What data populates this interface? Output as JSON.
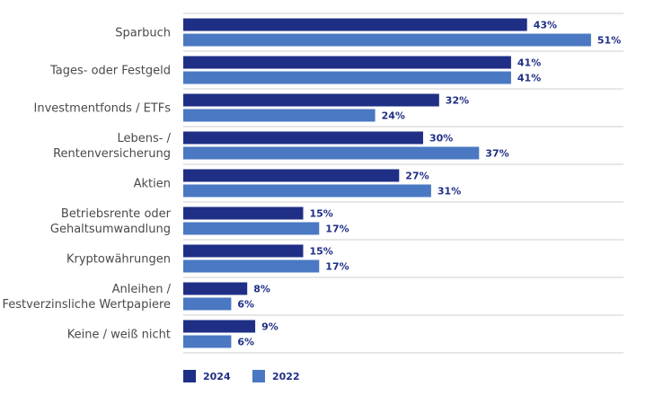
{
  "chart_data": {
    "type": "bar",
    "orientation": "horizontal",
    "categories": [
      [
        "Sparbuch"
      ],
      [
        "Tages- oder Festgeld"
      ],
      [
        "Investmentfonds / ETFs"
      ],
      [
        "Lebens- /",
        "Rentenversicherung"
      ],
      [
        "Aktien"
      ],
      [
        "Betriebsrente oder",
        "Gehaltsumwandlung"
      ],
      [
        "Kryptowährungen"
      ],
      [
        "Anleihen /",
        "Festverzinsliche Wertpapiere"
      ],
      [
        "Keine / weiß nicht"
      ]
    ],
    "series": [
      {
        "name": "2024",
        "color": "#1f2f86",
        "values": [
          43,
          41,
          32,
          30,
          27,
          15,
          15,
          8,
          9
        ]
      },
      {
        "name": "2022",
        "color": "#4a78c2",
        "values": [
          51,
          41,
          24,
          37,
          31,
          17,
          17,
          6,
          6
        ]
      }
    ],
    "value_suffix": "%",
    "xlim": [
      0,
      60
    ],
    "grid": false,
    "legend_position": "bottom-left"
  }
}
